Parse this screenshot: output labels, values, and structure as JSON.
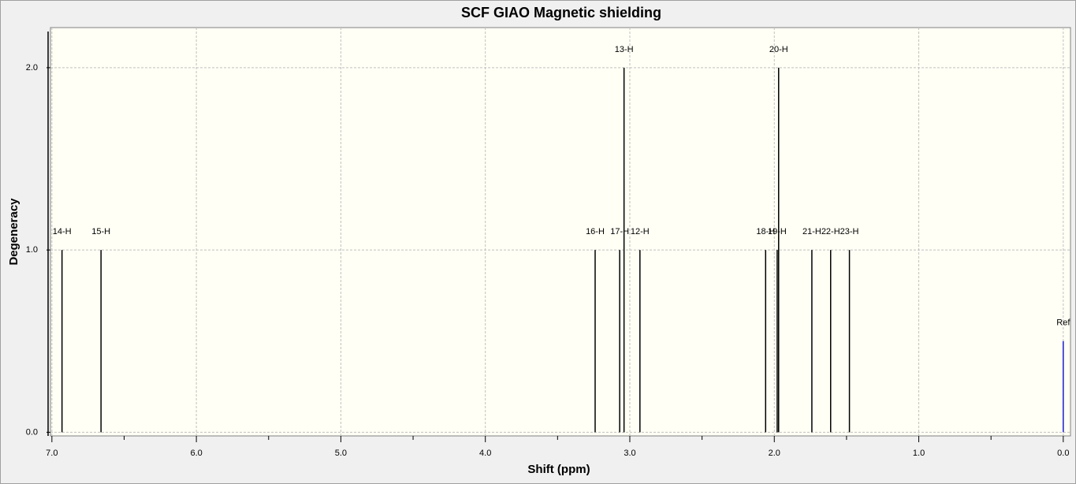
{
  "chart_data": {
    "type": "stick",
    "title": "SCF GIAO Magnetic shielding",
    "x_label": "Shift (ppm)",
    "y_label": "Degeneracy",
    "x": [
      6.93,
      6.66,
      3.24,
      3.07,
      3.04,
      2.93,
      2.06,
      1.98,
      1.97,
      1.74,
      1.61,
      1.48
    ],
    "values": [
      1,
      1,
      1,
      1,
      2,
      1,
      1,
      1,
      2,
      1,
      1,
      1
    ],
    "labels": [
      "14-H",
      "15-H",
      "16-H",
      "17-H",
      "13-H",
      "12-H",
      "18-H",
      "19-H",
      "20-H",
      "21-H",
      "22-H",
      "23-H"
    ],
    "color": "#000000",
    "reference": {
      "x": 0,
      "value": 0.5,
      "label": "Ref",
      "color": "#1a1acc"
    },
    "xlim": [
      7.01,
      -0.05
    ],
    "ylim": [
      -0.02,
      2.22
    ],
    "xticks": [
      {
        "value": 7,
        "label": "7.0"
      },
      {
        "value": 6,
        "label": "6.0"
      },
      {
        "value": 5,
        "label": "5.0"
      },
      {
        "value": 4,
        "label": "4.0"
      },
      {
        "value": 3,
        "label": "3.0"
      },
      {
        "value": 2,
        "label": "2.0"
      },
      {
        "value": 1,
        "label": "1.0"
      },
      {
        "value": 0,
        "label": "0.0"
      }
    ],
    "xminorticks": [
      6.5,
      5.5,
      4.5,
      3.5,
      2.5,
      1.5,
      0.5
    ],
    "yticks": [
      {
        "value": 0,
        "label": "0.0"
      },
      {
        "value": 1,
        "label": "1.0"
      },
      {
        "value": 2,
        "label": "2.0"
      }
    ],
    "grid": true
  }
}
